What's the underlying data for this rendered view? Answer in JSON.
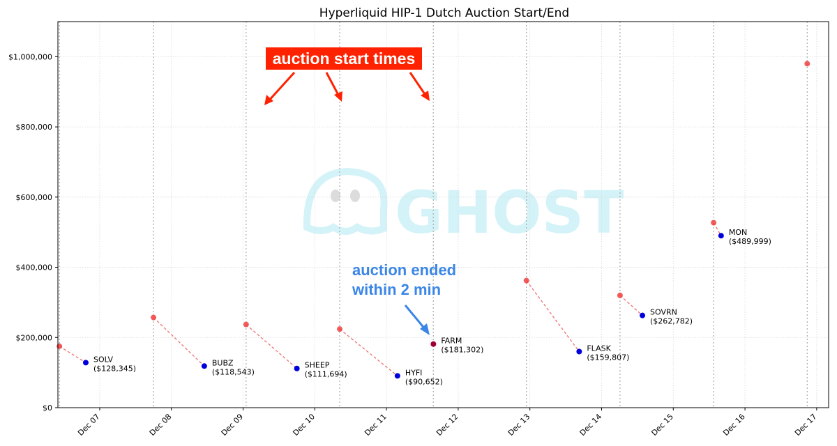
{
  "chart_data": {
    "type": "scatter",
    "title": "Hyperliquid HIP-1 Dutch Auction Start/End",
    "xlabel": "",
    "ylabel": "",
    "x_range": [
      "2024-12-06 10:00",
      "2024-12-17 04:00"
    ],
    "ylim": [
      0,
      1100000
    ],
    "y_ticks": [
      0,
      200000,
      400000,
      600000,
      800000,
      1000000
    ],
    "y_tick_labels": [
      "$0",
      "$200,000",
      "$400,000",
      "$600,000",
      "$800,000",
      "$1,000,000"
    ],
    "x_ticks": [
      "2024-12-07",
      "2024-12-08",
      "2024-12-09",
      "2024-12-10",
      "2024-12-11",
      "2024-12-12",
      "2024-12-13",
      "2024-12-14",
      "2024-12-15",
      "2024-12-16",
      "2024-12-17"
    ],
    "x_tick_labels": [
      "Dec 07",
      "Dec 08",
      "Dec 09",
      "Dec 10",
      "Dec 11",
      "Dec 12",
      "Dec 13",
      "Dec 14",
      "Dec 15",
      "Dec 16",
      "Dec 17"
    ],
    "grid": true,
    "auction_start_times": [
      "2024-12-06 10:30",
      "2024-12-07 18:00",
      "2024-12-09 01:00",
      "2024-12-10 08:20",
      "2024-12-11 15:40",
      "2024-12-12 22:50",
      "2024-12-14 06:10",
      "2024-12-15 13:30",
      "2024-12-16 20:50"
    ],
    "auctions": [
      {
        "name": "SOLV",
        "start_time": "2024-12-06 10:30",
        "start_price": 175000,
        "end_time": "2024-12-06 19:20",
        "end_price": 128345,
        "end_label": "($128,345)"
      },
      {
        "name": "BUBZ",
        "start_time": "2024-12-07 18:00",
        "start_price": 257000,
        "end_time": "2024-12-08 11:00",
        "end_price": 118543,
        "end_label": "($118,543)"
      },
      {
        "name": "SHEEP",
        "start_time": "2024-12-09 01:00",
        "start_price": 237000,
        "end_time": "2024-12-09 18:00",
        "end_price": 111694,
        "end_label": "($111,694)"
      },
      {
        "name": "HYFI",
        "start_time": "2024-12-10 08:20",
        "start_price": 224000,
        "end_time": "2024-12-11 03:40",
        "end_price": 90652,
        "end_label": "($90,652)"
      },
      {
        "name": "FARM",
        "start_time": "2024-12-11 15:40",
        "start_price": 181302,
        "end_time": "2024-12-11 15:42",
        "end_price": 181302,
        "end_label": "($181,302)"
      },
      {
        "name": "FLASK",
        "start_time": "2024-12-12 22:50",
        "start_price": 362000,
        "end_time": "2024-12-13 16:30",
        "end_price": 159807,
        "end_label": "($159,807)"
      },
      {
        "name": "SOVRN",
        "start_time": "2024-12-14 06:10",
        "start_price": 320000,
        "end_time": "2024-12-14 13:40",
        "end_price": 262782,
        "end_label": "($262,782)"
      },
      {
        "name": "MON",
        "start_time": "2024-12-15 13:30",
        "start_price": 527000,
        "end_time": "2024-12-15 16:00",
        "end_price": 489999,
        "end_label": "($489,999)"
      },
      {
        "name": "",
        "start_time": "2024-12-16 20:50",
        "start_price": 980000,
        "end_time": null,
        "end_price": null,
        "end_label": ""
      }
    ],
    "colors": {
      "start": "#f04040",
      "end": "#0000dd",
      "fast_end": "#a00030",
      "connector": "#f07070",
      "vline": "#b0b0b0",
      "grid": "#d9d9d9"
    },
    "annotations": [
      {
        "id": "start",
        "text": "auction start times",
        "style": "white on red",
        "color": "#ff2200"
      },
      {
        "id": "ended",
        "lines": [
          "auction ended",
          "within 2 min"
        ],
        "color": "#3b86e6"
      }
    ],
    "watermark": "GHOST"
  }
}
